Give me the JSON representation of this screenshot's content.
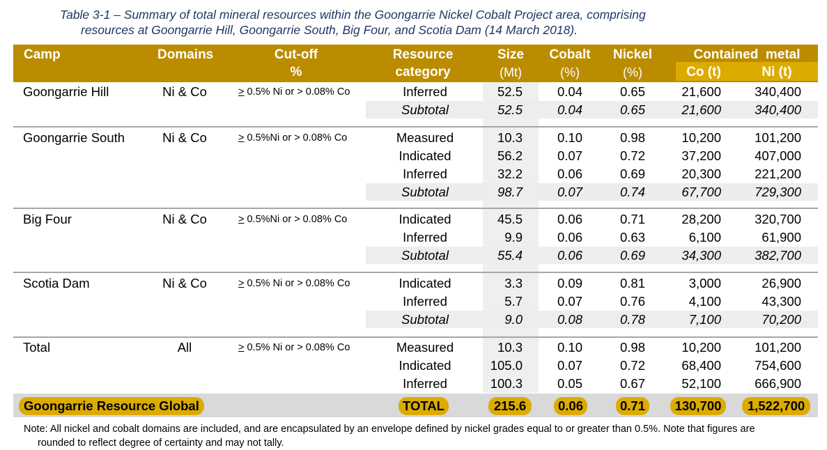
{
  "caption": {
    "line1": "Table 3-1  – Summary of total mineral resources within the Goongarrie Nickel Cobalt Project area, comprising",
    "line2": "resources at Goongarrie Hill, Goongarrie South, Big Four, and Scotia Dam (14 March 2018)."
  },
  "header": {
    "camp": "Camp",
    "domains": "Domains",
    "cutoff": "Cut-off",
    "cutoff_unit": "%",
    "resource": "Resource",
    "category": "category",
    "size": "Size",
    "size_unit": "(Mt)",
    "cobalt": "Cobalt",
    "cobalt_unit": "(%)",
    "nickel": "Nickel",
    "nickel_unit": "(%)",
    "contained": "Contained  metal",
    "co_t": "Co (t)",
    "ni_t": "Ni (t)"
  },
  "groups": [
    {
      "camp": "Goongarrie Hill",
      "domains": "Ni & Co",
      "cutoff_sym": ">",
      "cutoff_rest": " 0.5% Ni or > 0.08% Co",
      "rows": [
        {
          "category": "Inferred",
          "size": "52.5",
          "cobalt": "0.04",
          "nickel": "0.65",
          "co": "21,600",
          "ni": "340,400"
        },
        {
          "category": "Subtotal",
          "size": "52.5",
          "cobalt": "0.04",
          "nickel": "0.65",
          "co": "21,600",
          "ni": "340,400"
        }
      ]
    },
    {
      "camp": "Goongarrie South",
      "domains": "Ni & Co",
      "cutoff_sym": ">",
      "cutoff_rest": " 0.5%Ni or > 0.08% Co",
      "rows": [
        {
          "category": "Measured",
          "size": "10.3",
          "cobalt": "0.10",
          "nickel": "0.98",
          "co": "10,200",
          "ni": "101,200"
        },
        {
          "category": "Indicated",
          "size": "56.2",
          "cobalt": "0.07",
          "nickel": "0.72",
          "co": "37,200",
          "ni": "407,000"
        },
        {
          "category": "Inferred",
          "size": "32.2",
          "cobalt": "0.06",
          "nickel": "0.69",
          "co": "20,300",
          "ni": "221,200"
        },
        {
          "category": "Subtotal",
          "size": "98.7",
          "cobalt": "0.07",
          "nickel": "0.74",
          "co": "67,700",
          "ni": "729,300"
        }
      ]
    },
    {
      "camp": "Big Four",
      "domains": "Ni & Co",
      "cutoff_sym": ">",
      "cutoff_rest": " 0.5%Ni or > 0.08% Co",
      "rows": [
        {
          "category": "Indicated",
          "size": "45.5",
          "cobalt": "0.06",
          "nickel": "0.71",
          "co": "28,200",
          "ni": "320,700"
        },
        {
          "category": "Inferred",
          "size": "9.9",
          "cobalt": "0.06",
          "nickel": "0.63",
          "co": "6,100",
          "ni": "61,900"
        },
        {
          "category": "Subtotal",
          "size": "55.4",
          "cobalt": "0.06",
          "nickel": "0.69",
          "co": "34,300",
          "ni": "382,700"
        }
      ]
    },
    {
      "camp": "Scotia Dam",
      "domains": "Ni & Co",
      "cutoff_sym": ">",
      "cutoff_rest": " 0.5% Ni or > 0.08% Co",
      "rows": [
        {
          "category": "Indicated",
          "size": "3.3",
          "cobalt": "0.09",
          "nickel": "0.81",
          "co": "3,000",
          "ni": "26,900"
        },
        {
          "category": "Inferred",
          "size": "5.7",
          "cobalt": "0.07",
          "nickel": "0.76",
          "co": "4,100",
          "ni": "43,300"
        },
        {
          "category": "Subtotal",
          "size": "9.0",
          "cobalt": "0.08",
          "nickel": "0.78",
          "co": "7,100",
          "ni": "70,200"
        }
      ]
    },
    {
      "camp": "Total",
      "domains": "All",
      "cutoff_sym": ">",
      "cutoff_rest": " 0.5% Ni or > 0.08% Co",
      "rows": [
        {
          "category": "Measured",
          "size": "10.3",
          "cobalt": "0.10",
          "nickel": "0.98",
          "co": "10,200",
          "ni": "101,200"
        },
        {
          "category": "Indicated",
          "size": "105.0",
          "cobalt": "0.07",
          "nickel": "0.72",
          "co": "68,400",
          "ni": "754,600"
        },
        {
          "category": "Inferred",
          "size": "100.3",
          "cobalt": "0.05",
          "nickel": "0.67",
          "co": "52,100",
          "ni": "666,900"
        }
      ]
    }
  ],
  "total": {
    "label": "Goongarrie Resource Global",
    "category": "TOTAL",
    "size": "215.6",
    "cobalt": "0.06",
    "nickel": "0.71",
    "co": "130,700",
    "ni": "1,522,700"
  },
  "note": {
    "line1": "Note: All nickel and cobalt domains are included, and are encapsulated by an envelope defined by nickel grades equal to or greater than 0.5%. Note that figures are",
    "line2": "rounded to reflect degree of certainty and may not tally."
  }
}
